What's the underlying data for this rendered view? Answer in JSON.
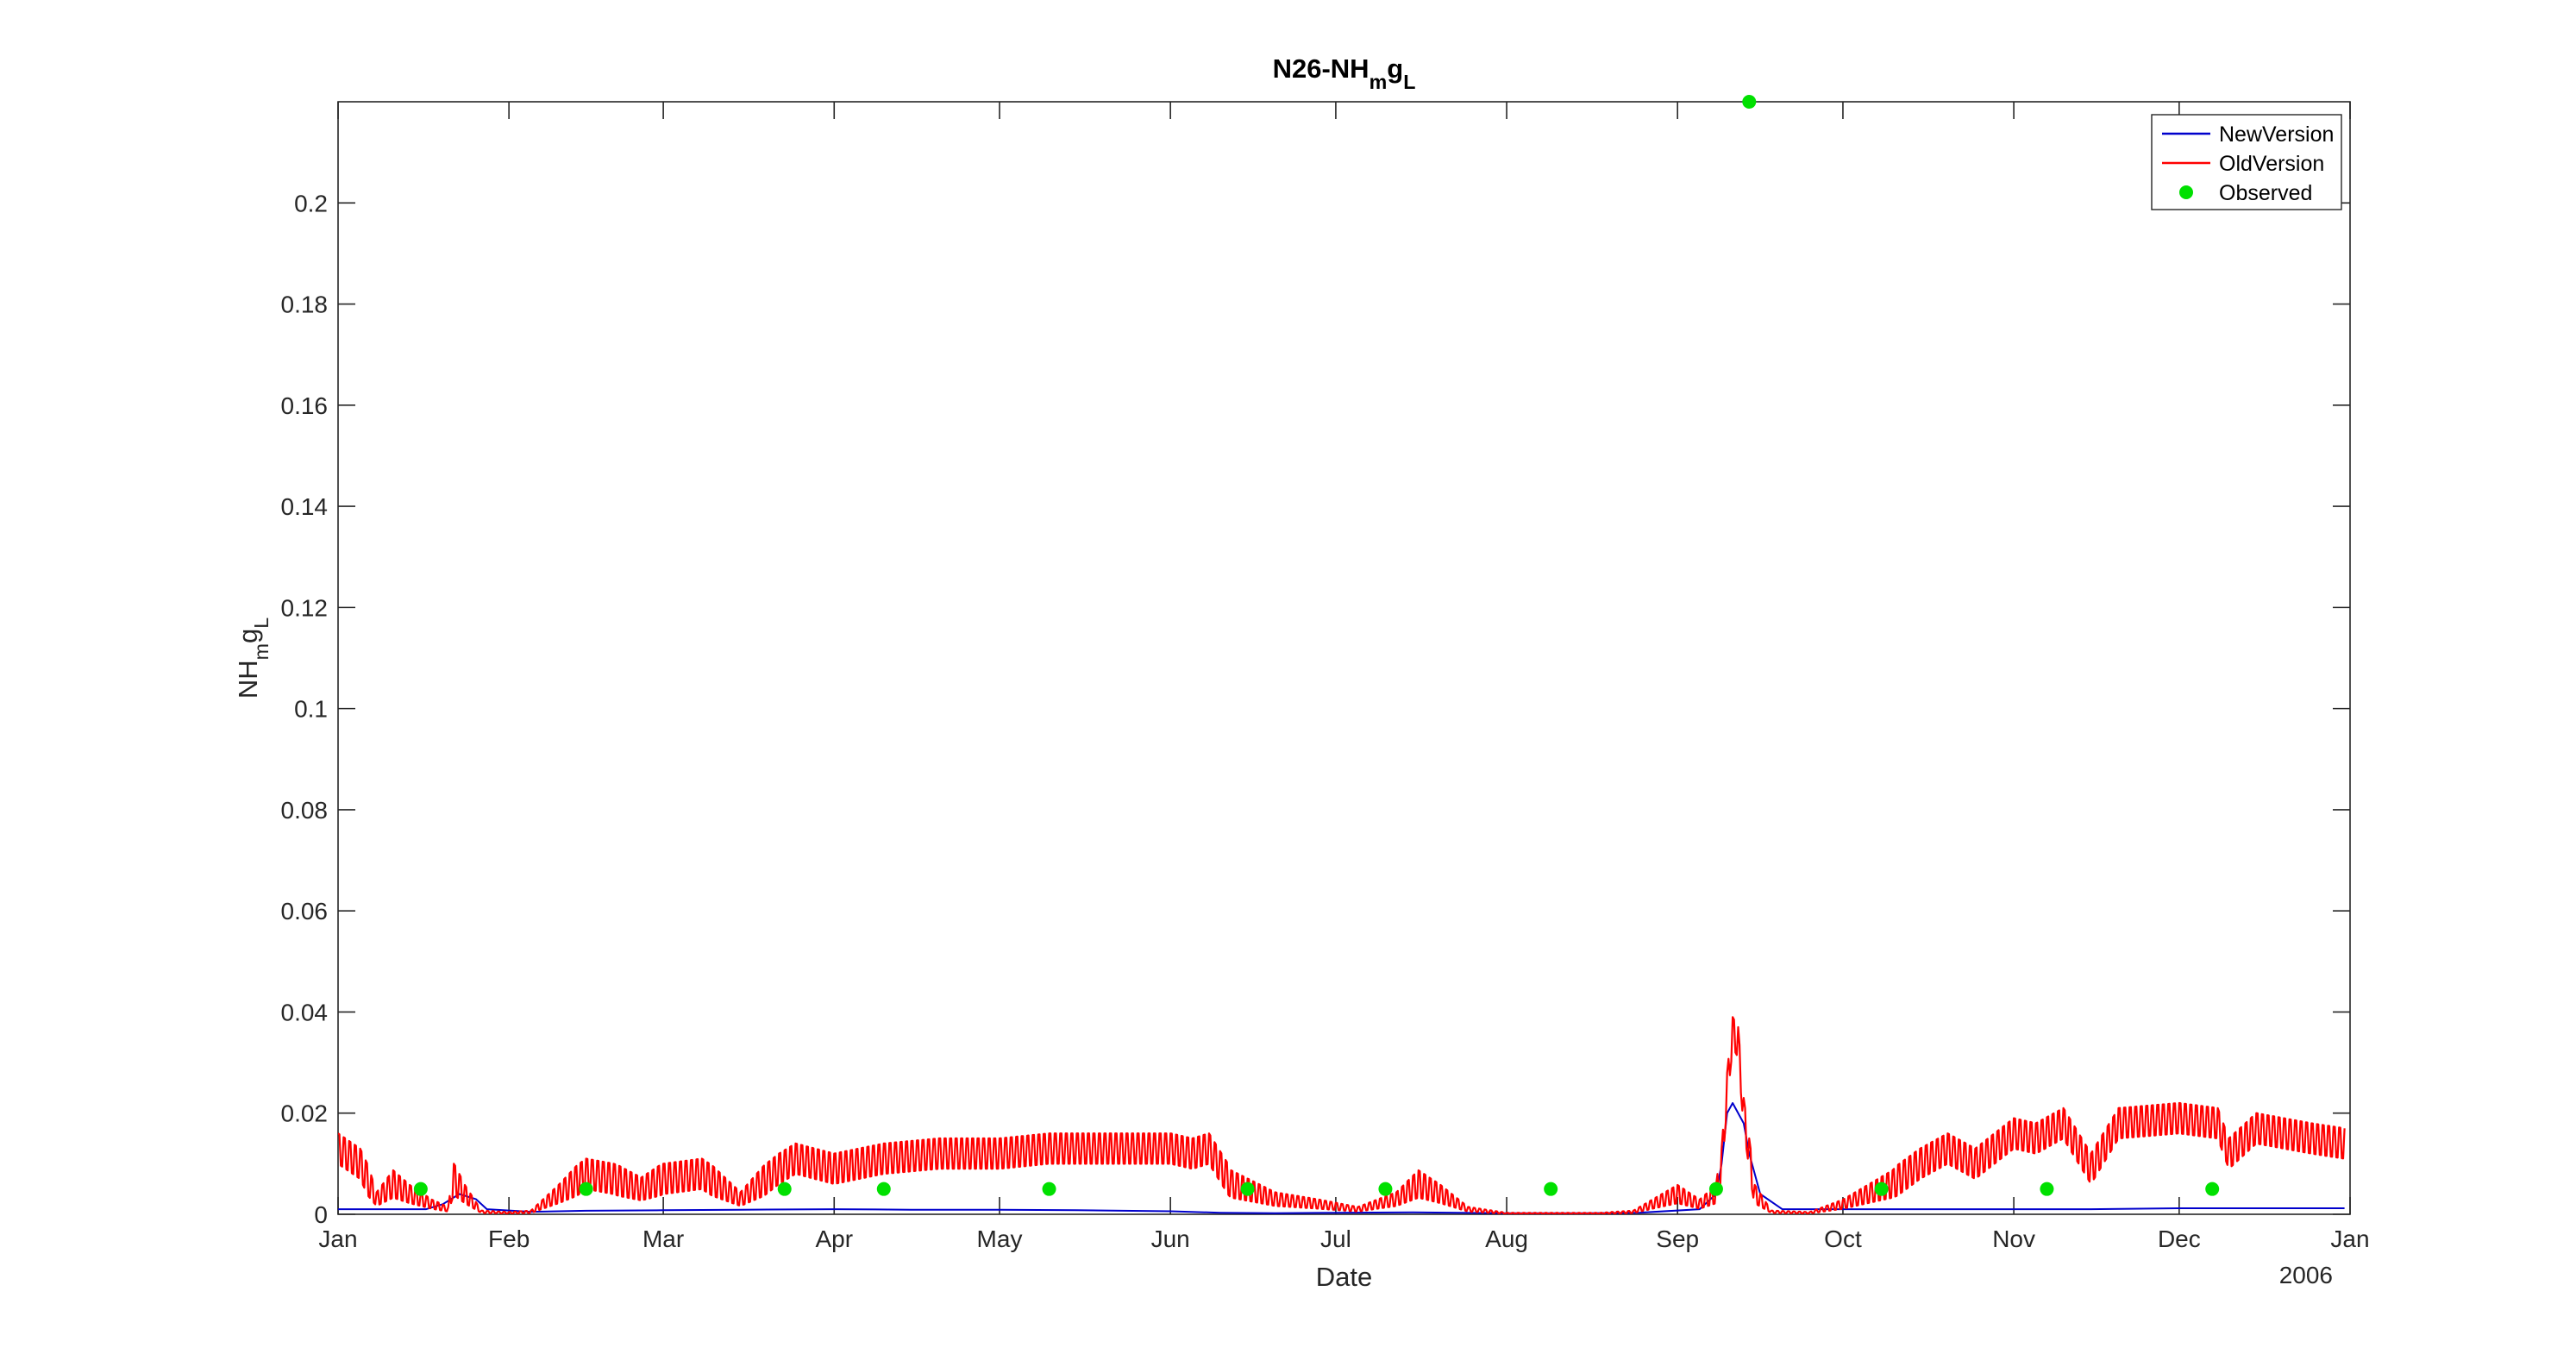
{
  "chart_data": {
    "type": "line",
    "title": {
      "base": "N26-NH",
      "sub1": "m",
      "mid": "g",
      "sub2": "L"
    },
    "xlabel": "Date",
    "ylabel": {
      "base": "NH",
      "sub1": "m",
      "mid": "g",
      "sub2": "L"
    },
    "year_label": "2006",
    "x_range": [
      "2006-01-01",
      "2007-01-01"
    ],
    "x_tick_labels": [
      "Jan",
      "Feb",
      "Mar",
      "Apr",
      "May",
      "Jun",
      "Jul",
      "Aug",
      "Sep",
      "Oct",
      "Nov",
      "Dec",
      "Jan"
    ],
    "ylim": [
      0,
      0.22
    ],
    "y_ticks": [
      0,
      0.02,
      0.04,
      0.06,
      0.08,
      0.1,
      0.12,
      0.14,
      0.16,
      0.18,
      0.2
    ],
    "y_tick_labels": [
      "0",
      "0.02",
      "0.04",
      "0.06",
      "0.08",
      "0.1",
      "0.12",
      "0.14",
      "0.16",
      "0.18",
      "0.2"
    ],
    "grid": false,
    "legend_position": "top-right",
    "series": [
      {
        "name": "NewVersion",
        "color": "#0000cc",
        "style": "line",
        "dates": [
          "2006-01-01",
          "2006-01-10",
          "2006-01-17",
          "2006-01-20",
          "2006-01-23",
          "2006-01-26",
          "2006-01-28",
          "2006-02-05",
          "2006-02-15",
          "2006-03-01",
          "2006-03-15",
          "2006-04-01",
          "2006-04-15",
          "2006-05-01",
          "2006-05-15",
          "2006-06-01",
          "2006-06-10",
          "2006-06-20",
          "2006-07-01",
          "2006-07-15",
          "2006-08-01",
          "2006-08-15",
          "2006-08-25",
          "2006-09-05",
          "2006-09-08",
          "2006-09-09",
          "2006-09-10",
          "2006-09-11",
          "2006-09-13",
          "2006-09-14",
          "2006-09-16",
          "2006-09-20",
          "2006-10-01",
          "2006-10-15",
          "2006-11-01",
          "2006-11-15",
          "2006-12-01",
          "2006-12-15",
          "2006-12-31"
        ],
        "values": [
          0.001,
          0.001,
          0.001,
          0.002,
          0.004,
          0.003,
          0.001,
          0.0005,
          0.0007,
          0.0008,
          0.0009,
          0.001,
          0.0009,
          0.0009,
          0.0008,
          0.0006,
          0.0003,
          0.0002,
          0.0003,
          0.0004,
          0.0002,
          0.0002,
          0.0003,
          0.001,
          0.004,
          0.01,
          0.02,
          0.022,
          0.018,
          0.012,
          0.004,
          0.001,
          0.001,
          0.001,
          0.001,
          0.001,
          0.0012,
          0.0012,
          0.0012
        ]
      },
      {
        "name": "OldVersion",
        "color": "#ff0000",
        "style": "line",
        "oscillation_amplitude": 0.003,
        "dates": [
          "2006-01-01",
          "2006-01-05",
          "2006-01-08",
          "2006-01-11",
          "2006-01-14",
          "2006-01-18",
          "2006-01-21",
          "2006-01-22",
          "2006-01-24",
          "2006-01-27",
          "2006-02-01",
          "2006-02-05",
          "2006-02-10",
          "2006-02-15",
          "2006-02-20",
          "2006-02-25",
          "2006-03-01",
          "2006-03-08",
          "2006-03-15",
          "2006-03-22",
          "2006-03-25",
          "2006-04-01",
          "2006-04-10",
          "2006-04-20",
          "2006-05-01",
          "2006-05-10",
          "2006-05-20",
          "2006-06-01",
          "2006-06-05",
          "2006-06-08",
          "2006-06-12",
          "2006-06-20",
          "2006-06-28",
          "2006-07-05",
          "2006-07-12",
          "2006-07-16",
          "2006-07-20",
          "2006-07-25",
          "2006-08-01",
          "2006-08-10",
          "2006-08-18",
          "2006-08-24",
          "2006-09-01",
          "2006-09-05",
          "2006-09-08",
          "2006-09-09",
          "2006-09-10",
          "2006-09-11",
          "2006-09-12",
          "2006-09-13",
          "2006-09-15",
          "2006-09-18",
          "2006-09-25",
          "2006-10-01",
          "2006-10-10",
          "2006-10-15",
          "2006-10-20",
          "2006-10-25",
          "2006-11-01",
          "2006-11-05",
          "2006-11-10",
          "2006-11-15",
          "2006-11-20",
          "2006-12-01",
          "2006-12-08",
          "2006-12-10",
          "2006-12-15",
          "2006-12-20",
          "2006-12-25",
          "2006-12-31"
        ],
        "values": [
          0.013,
          0.01,
          0.003,
          0.006,
          0.004,
          0.002,
          0.001,
          0.007,
          0.004,
          0.0005,
          0.0003,
          0.0005,
          0.004,
          0.008,
          0.007,
          0.005,
          0.007,
          0.008,
          0.003,
          0.009,
          0.011,
          0.009,
          0.011,
          0.012,
          0.012,
          0.013,
          0.013,
          0.013,
          0.012,
          0.013,
          0.006,
          0.003,
          0.002,
          0.001,
          0.003,
          0.006,
          0.004,
          0.001,
          0.0002,
          0.0002,
          0.0002,
          0.0005,
          0.004,
          0.002,
          0.004,
          0.01,
          0.025,
          0.036,
          0.034,
          0.02,
          0.004,
          0.0005,
          0.0003,
          0.002,
          0.006,
          0.01,
          0.013,
          0.01,
          0.016,
          0.015,
          0.018,
          0.009,
          0.018,
          0.019,
          0.018,
          0.012,
          0.017,
          0.016,
          0.015,
          0.014
        ]
      },
      {
        "name": "Observed",
        "color": "#00e000",
        "style": "marker",
        "dates": [
          "2006-01-16",
          "2006-02-15",
          "2006-03-23",
          "2006-04-10",
          "2006-05-10",
          "2006-06-15",
          "2006-07-10",
          "2006-08-09",
          "2006-09-08",
          "2006-09-14",
          "2006-10-08",
          "2006-11-07",
          "2006-12-07"
        ],
        "values": [
          0.005,
          0.005,
          0.005,
          0.005,
          0.005,
          0.005,
          0.005,
          0.005,
          0.005,
          0.22,
          0.005,
          0.005,
          0.005
        ]
      }
    ]
  }
}
